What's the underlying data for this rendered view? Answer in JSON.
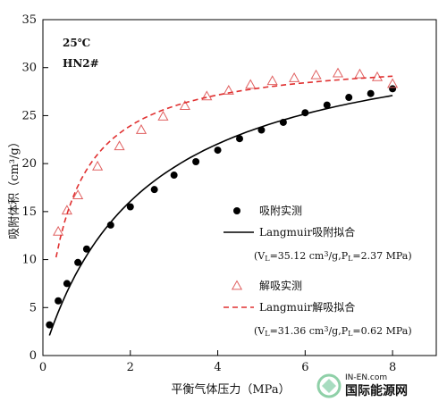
{
  "chart_data": {
    "type": "scatter",
    "xlabel": "平衡气体压力（MPa）",
    "ylabel": "吸附体积（cm³/g）",
    "xlim": [
      0,
      9
    ],
    "ylim": [
      0,
      35
    ],
    "xticks": [
      0,
      2,
      4,
      6,
      8
    ],
    "yticks": [
      0,
      5,
      10,
      15,
      20,
      25,
      30,
      35
    ],
    "grid": false,
    "legend_position": "center-right",
    "annotations": [
      "25℃",
      "HN2#"
    ],
    "series": [
      {
        "name": "吸附实测",
        "kind": "scatter",
        "marker": "filled-circle",
        "color": "#000000",
        "x": [
          0.15,
          0.35,
          0.55,
          0.8,
          1.0,
          1.55,
          2.0,
          2.55,
          3.0,
          3.5,
          4.0,
          4.5,
          5.0,
          5.5,
          6.0,
          6.5,
          7.0,
          7.5,
          8.0
        ],
        "y": [
          3.2,
          5.7,
          7.5,
          9.7,
          11.1,
          13.6,
          15.5,
          17.3,
          18.8,
          20.2,
          21.4,
          22.6,
          23.5,
          24.3,
          25.3,
          26.1,
          26.9,
          27.3,
          27.8
        ]
      },
      {
        "name": "Langmuir吸附拟合",
        "kind": "line",
        "style": "solid",
        "color": "#000000",
        "params": {
          "VL": 35.12,
          "PL": 2.37
        },
        "x_range": [
          0.15,
          8.0
        ]
      },
      {
        "name": "解吸实测",
        "kind": "scatter",
        "marker": "open-triangle",
        "color": "#e06060",
        "x": [
          0.35,
          0.55,
          0.8,
          1.25,
          1.75,
          2.25,
          2.75,
          3.25,
          3.75,
          4.25,
          4.75,
          5.25,
          5.75,
          6.25,
          6.75,
          7.25,
          7.65,
          8.0
        ],
        "y": [
          12.9,
          15.1,
          16.7,
          19.7,
          21.8,
          23.5,
          24.9,
          26.0,
          27.0,
          27.6,
          28.2,
          28.6,
          28.9,
          29.2,
          29.4,
          29.3,
          29.0,
          28.3
        ]
      },
      {
        "name": "Langmuir解吸拟合",
        "kind": "line",
        "style": "dashed",
        "color": "#e03030",
        "params": {
          "VL": 31.36,
          "PL": 0.62
        },
        "x_range": [
          0.3,
          8.0
        ]
      }
    ],
    "legend": [
      {
        "label": "吸附实测"
      },
      {
        "label": "Langmuir吸附拟合",
        "sub": [
          "(V",
          "L",
          "=35.12 cm",
          "3",
          "/g,P",
          "L",
          "=2.37 MPa)"
        ]
      },
      {
        "label": "解吸实测"
      },
      {
        "label": "Langmuir解吸拟合",
        "sub": [
          "(V",
          "L",
          "=31.36 cm",
          "3",
          "/g,P",
          "L",
          "=0.62 MPa)"
        ]
      }
    ]
  },
  "watermark": {
    "line1": "IN-EN.com",
    "line2": "国际能源网"
  }
}
